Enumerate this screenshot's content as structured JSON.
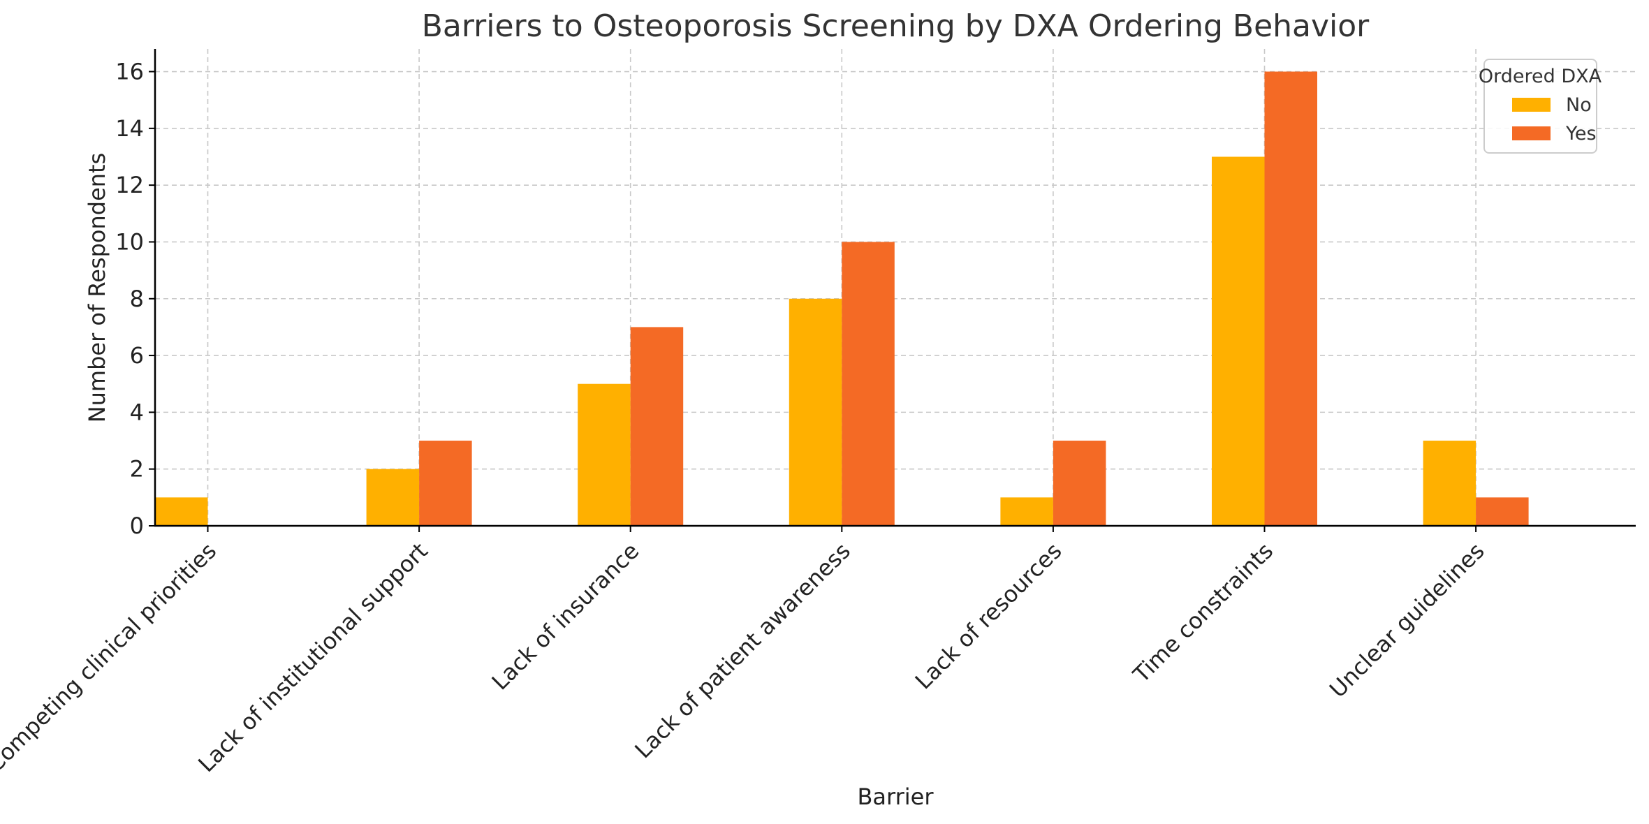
{
  "chart_data": {
    "type": "bar",
    "title": "Barriers to Osteoporosis Screening by DXA Ordering Behavior",
    "xlabel": "Barrier",
    "ylabel": "Number of Respondents",
    "ylim": [
      0,
      16.8
    ],
    "yticks": [
      0,
      2,
      4,
      6,
      8,
      10,
      12,
      14,
      16
    ],
    "grid": true,
    "legend_title": "Ordered DXA",
    "legend_position": "top-right",
    "categories": [
      "Competing clinical priorities",
      "Lack of institutional support",
      "Lack of insurance",
      "Lack of patient awareness",
      "Lack of resources",
      "Time constraints",
      "Unclear guidelines"
    ],
    "series": [
      {
        "name": "No",
        "color": "#FFB000",
        "values": [
          1,
          2,
          5,
          8,
          1,
          13,
          3
        ]
      },
      {
        "name": "Yes",
        "color": "#F46A25",
        "values": [
          0,
          3,
          7,
          10,
          3,
          16,
          1
        ]
      }
    ]
  }
}
